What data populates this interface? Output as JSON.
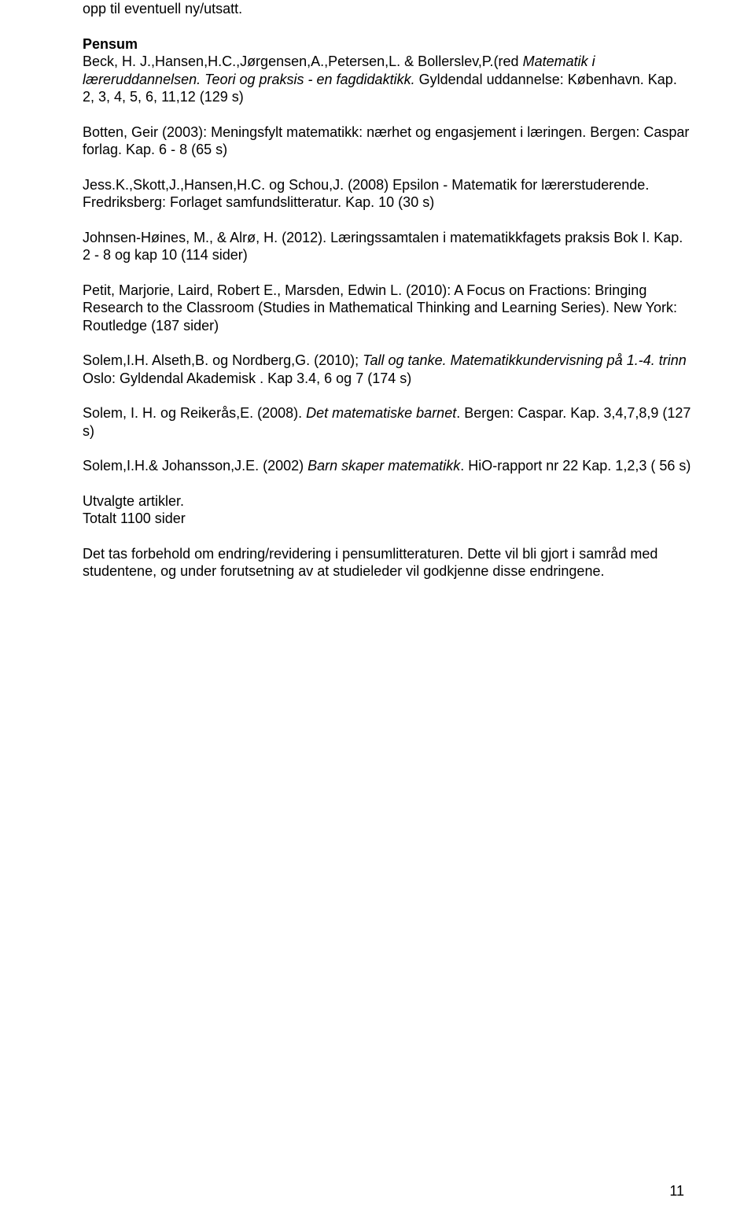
{
  "intro_line": "opp til eventuell ny/utsatt.",
  "pensum_heading": "Pensum",
  "p1_a": "Beck, H. J.,Hansen,H.C.,Jørgensen,A.,Petersen,L. & Bollerslev,P.(red ",
  "p1_b": "Matematik i læreruddannelsen. Teori og praksis - en fagdidaktikk.",
  "p1_c": " Gyldendal uddannelse: København. Kap. 2, 3, 4, 5, 6, 11,12 (129 s)",
  "p2_a": "Botten, Geir (2003): Meningsfylt matematikk: nærhet og engasjement i læringen. Bergen: Caspar forlag. Kap. 6 - 8 (65 s)",
  "p3_a": "Jess.K.,Skott,J.,Hansen,H.C. og Schou,J. (2008) Epsilon - Matematik for lærerstuderende. Fredriksberg: Forlaget samfundslitteratur. Kap. 10 (30 s)",
  "p4_a": "Johnsen-Høines, M., & Alrø, H. (2012). Læringssamtalen i matematikkfagets praksis Bok I. Kap. 2 - 8 og kap 10 (114 sider)",
  "p5_a": "Petit, Marjorie, Laird, Robert E., Marsden, Edwin L. (2010): A Focus on Fractions: Bringing Research to the Classroom (Studies in Mathematical Thinking and Learning Series). New York: Routledge (187 sider)",
  "p6_a": "Solem,I.H. Alseth,B. og Nordberg,G. (2010); ",
  "p6_b": "Tall og tanke. Matematikkundervisning på 1.-4. trinn",
  "p6_c": " Oslo: Gyldendal Akademisk . Kap 3.4, 6 og 7 (174 s)",
  "p7_a": "Solem, I. H. og Reikerås,E. (2008). ",
  "p7_b": "Det matematiske barnet",
  "p7_c": ". Bergen: Caspar. Kap. 3,4,7,8,9 (127 s)",
  "p8_a": "Solem,I.H.& Johansson,J.E. (2002) ",
  "p8_b": "Barn skaper matematikk",
  "p8_c": ". HiO-rapport nr 22 Kap. 1,2,3 ( 56 s)",
  "p9_line1": "Utvalgte artikler.",
  "p9_line2": "Totalt 1100 sider",
  "p10": "Det tas forbehold om endring/revidering i pensumlitteraturen. Dette vil bli gjort i samråd med studentene, og under forutsetning av at studieleder vil godkjenne disse endringene.",
  "page_number": "11"
}
